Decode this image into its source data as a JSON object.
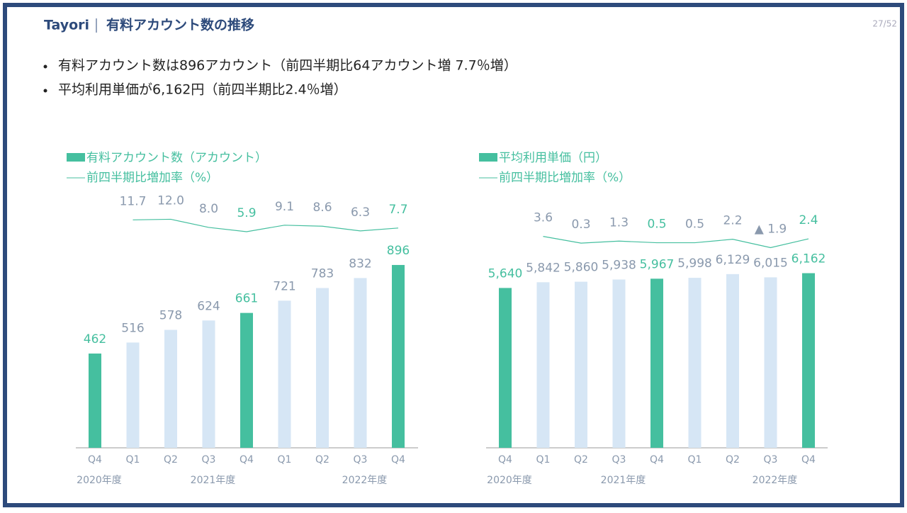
{
  "header": {
    "brand": "Tayori",
    "title": "有料アカウント数の推移",
    "page": "27/52"
  },
  "bullets": [
    "有料アカウント数は896アカウント（前四半期比64アカウント増 7.7％増）",
    "平均利用単価が6,162円（前四半期比2.4％増）"
  ],
  "chart_data": [
    {
      "type": "bar",
      "categories": [
        "Q4",
        "Q1",
        "Q2",
        "Q3",
        "Q4",
        "Q1",
        "Q2",
        "Q3",
        "Q4"
      ],
      "periods": [
        "2020年度",
        null,
        null,
        "2021年度",
        null,
        null,
        null,
        "2022年度",
        null
      ],
      "ylim": [
        0,
        1500
      ],
      "y2lim": [
        -100,
        50
      ],
      "highlight_color": "#45bf9f",
      "label_color": "#8a99ad",
      "series": [
        {
          "name": "有料アカウント数（アカウント）",
          "color": "#45bf9f",
          "colors": [
            "#45bf9f",
            "#d6e6f5",
            "#d6e6f5",
            "#d6e6f5",
            "#45bf9f",
            "#d6e6f5",
            "#d6e6f5",
            "#d6e6f5",
            "#45bf9f"
          ],
          "values": [
            462,
            516,
            578,
            624,
            661,
            721,
            783,
            832,
            896
          ]
        },
        {
          "name": "前四半期比増加率（%）",
          "type": "line",
          "axis": "y2",
          "color": "#45bf9f",
          "values": [
            null,
            11.7,
            12.0,
            8.0,
            5.9,
            9.1,
            8.6,
            6.3,
            7.7
          ],
          "value_labels": [
            null,
            "11.7",
            "12.0",
            "8.0",
            "5.9",
            "9.1",
            "8.6",
            "6.3",
            "7.7"
          ]
        }
      ]
    },
    {
      "type": "bar",
      "categories": [
        "Q4",
        "Q1",
        "Q2",
        "Q3",
        "Q4",
        "Q1",
        "Q2",
        "Q3",
        "Q4"
      ],
      "periods": [
        "2020年度",
        null,
        null,
        "2021年度",
        null,
        null,
        null,
        "2022年度",
        null
      ],
      "ylim": [
        0,
        10800
      ],
      "y2lim": [
        -100,
        50
      ],
      "highlight_color": "#45bf9f",
      "label_color": "#8a99ad",
      "series": [
        {
          "name": "平均利用単価（円）",
          "color": "#45bf9f",
          "colors": [
            "#45bf9f",
            "#d6e6f5",
            "#d6e6f5",
            "#d6e6f5",
            "#45bf9f",
            "#d6e6f5",
            "#d6e6f5",
            "#d6e6f5",
            "#45bf9f"
          ],
          "values": [
            5640,
            5842,
            5860,
            5938,
            5967,
            5998,
            6129,
            6015,
            6162
          ],
          "value_labels": [
            "5,640",
            "5,842",
            "5,860",
            "5,938",
            "5,967",
            "5,998",
            "6,129",
            "6,015",
            "6,162"
          ]
        },
        {
          "name": "前四半期比増加率（%）",
          "type": "line",
          "axis": "y2",
          "color": "#45bf9f",
          "values": [
            null,
            3.6,
            0.3,
            1.3,
            0.5,
            0.5,
            2.2,
            -1.9,
            2.4
          ],
          "value_labels": [
            null,
            "3.6",
            "0.3",
            "1.3",
            "0.5",
            "0.5",
            "2.2",
            "▲ 1.9",
            "2.4"
          ]
        }
      ]
    }
  ]
}
